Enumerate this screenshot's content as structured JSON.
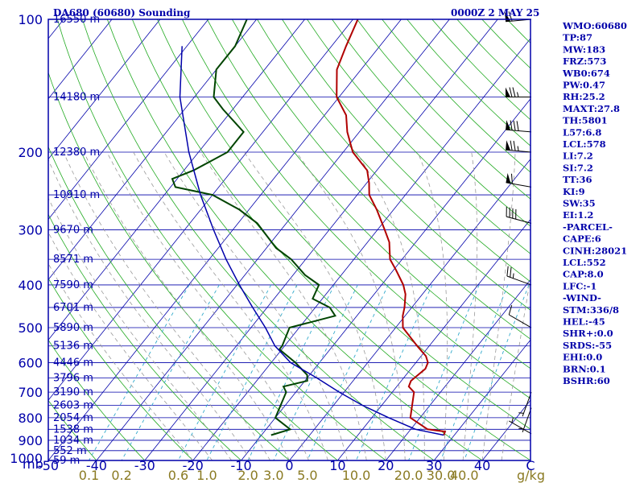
{
  "title": "DA680 (60680) Sounding",
  "datetime": "0000Z  2 MAY 25",
  "pressure_axis_label": "mb",
  "mixing_ratio_unit": "g/kg",
  "side_panel": [
    "WMO:60680",
    "TP:87",
    "MW:183",
    "FRZ:573",
    "WB0:674",
    "PW:0.47",
    "RH:25.2",
    "MAXT:27.8",
    "TH:5801",
    "L57:6.8",
    "LCL:578",
    "LI:7.2",
    "SI:7.2",
    "TT:36",
    "KI:9",
    "SW:35",
    "EI:1.2",
    "-PARCEL-",
    "CAPE:6",
    "CINH:28021",
    "LCL:552",
    "CAP:8.0",
    "LFC:-1",
    "-WIND-",
    "STM:336/8",
    "HEL:-45",
    "SHR+:0.0",
    "SRDS:-55",
    "EHI:0.0",
    "BRN:0.1",
    "BSHR:60"
  ],
  "colors": {
    "frame": "#0000aa",
    "isobar": "#0000aa",
    "isotherm": "#0000aa",
    "dry_adiabat": "#22aa22",
    "moist_adiabat": "#9a9a9a",
    "mixing_ratio": "#33aacc",
    "temperature": "#b00000",
    "dewpoint": "#004400",
    "parcel": "#0000aa",
    "wind": "#000000"
  },
  "chart_data": {
    "type": "skew-t",
    "title": "DA680 (60680) Sounding",
    "xlabel": "",
    "ylabel": "mb",
    "x_unit": "°C",
    "xlim": [
      -50,
      50
    ],
    "pressure_range": [
      1000,
      100
    ],
    "log_pressure": true,
    "grid": true,
    "pressure_ticks": [
      100,
      200,
      300,
      400,
      500,
      600,
      700,
      800,
      900,
      1000
    ],
    "temperature_ticks": [
      -50,
      -40,
      -30,
      -20,
      -10,
      0,
      10,
      20,
      30,
      40,
      50
    ],
    "temperature_tick_labels": [
      "-50",
      "-40",
      "-30",
      "-20",
      "-10",
      "0",
      "10",
      "20",
      "30",
      "40",
      "C"
    ],
    "mixing_ratio_labels": [
      "0.1",
      "0.2",
      "0.6",
      "1.0",
      "2.0",
      "3.0",
      "5.0",
      "10.0",
      "20.0",
      "30.0",
      "40.0"
    ],
    "height_labels": [
      {
        "pressure": 100,
        "label": "16550 m"
      },
      {
        "pressure": 150,
        "label": "14180 m"
      },
      {
        "pressure": 200,
        "label": "12380 m"
      },
      {
        "pressure": 250,
        "label": "10910 m"
      },
      {
        "pressure": 300,
        "label": "9670 m"
      },
      {
        "pressure": 350,
        "label": "8571 m"
      },
      {
        "pressure": 400,
        "label": "7590 m"
      },
      {
        "pressure": 450,
        "label": "6701 m"
      },
      {
        "pressure": 500,
        "label": "5890 m"
      },
      {
        "pressure": 550,
        "label": "5136 m"
      },
      {
        "pressure": 600,
        "label": "4446 m"
      },
      {
        "pressure": 650,
        "label": "3796 m"
      },
      {
        "pressure": 700,
        "label": "3190 m"
      },
      {
        "pressure": 750,
        "label": "2603 m"
      },
      {
        "pressure": 800,
        "label": "2054 m"
      },
      {
        "pressure": 850,
        "label": "1538 m"
      },
      {
        "pressure": 900,
        "label": "1034 m"
      },
      {
        "pressure": 950,
        "label": "552 m"
      },
      {
        "pressure": 1000,
        "label": "59 m"
      }
    ],
    "series": [
      {
        "name": "Temperature",
        "color": "#b00000",
        "points": [
          [
            876,
            27.8
          ],
          [
            860,
            27.5
          ],
          [
            850,
            23.5
          ],
          [
            800,
            18
          ],
          [
            700,
            14.5
          ],
          [
            680,
            12.5
          ],
          [
            660,
            12
          ],
          [
            620,
            13
          ],
          [
            600,
            12.5
          ],
          [
            580,
            11
          ],
          [
            550,
            7.5
          ],
          [
            500,
            1.5
          ],
          [
            470,
            -0.5
          ],
          [
            450,
            -1.5
          ],
          [
            420,
            -3.5
          ],
          [
            400,
            -5.5
          ],
          [
            370,
            -9.5
          ],
          [
            350,
            -12.5
          ],
          [
            320,
            -15.5
          ],
          [
            300,
            -18.5
          ],
          [
            270,
            -23.5
          ],
          [
            250,
            -27.5
          ],
          [
            235,
            -29.5
          ],
          [
            220,
            -32
          ],
          [
            200,
            -38
          ],
          [
            180,
            -42.5
          ],
          [
            165,
            -45.5
          ],
          [
            150,
            -50.5
          ],
          [
            130,
            -55
          ],
          [
            115,
            -57
          ],
          [
            100,
            -59
          ]
        ]
      },
      {
        "name": "Dewpoint",
        "color": "#004400",
        "points": [
          [
            876,
            -8
          ],
          [
            850,
            -5
          ],
          [
            800,
            -10
          ],
          [
            700,
            -12
          ],
          [
            680,
            -13.5
          ],
          [
            660,
            -9.5
          ],
          [
            640,
            -10.5
          ],
          [
            600,
            -15
          ],
          [
            560,
            -20.5
          ],
          [
            550,
            -20.5
          ],
          [
            500,
            -22
          ],
          [
            470,
            -14.5
          ],
          [
            450,
            -17
          ],
          [
            430,
            -22
          ],
          [
            400,
            -23
          ],
          [
            380,
            -27.5
          ],
          [
            350,
            -33
          ],
          [
            330,
            -38
          ],
          [
            290,
            -46
          ],
          [
            270,
            -52
          ],
          [
            250,
            -60
          ],
          [
            240,
            -69
          ],
          [
            230,
            -71
          ],
          [
            220,
            -68
          ],
          [
            200,
            -64
          ],
          [
            180,
            -64
          ],
          [
            160,
            -72
          ],
          [
            150,
            -76
          ],
          [
            130,
            -80
          ],
          [
            115,
            -80
          ],
          [
            100,
            -82
          ]
        ]
      },
      {
        "name": "Parcel",
        "color": "#0000aa",
        "points": [
          [
            876,
            27.8
          ],
          [
            850,
            21
          ],
          [
            800,
            13.5
          ],
          [
            750,
            6
          ],
          [
            700,
            -1
          ],
          [
            650,
            -8
          ],
          [
            600,
            -16
          ],
          [
            550,
            -22
          ],
          [
            500,
            -27
          ],
          [
            450,
            -33
          ],
          [
            400,
            -39.5
          ],
          [
            350,
            -46.5
          ],
          [
            300,
            -54
          ],
          [
            250,
            -62.5
          ],
          [
            200,
            -72
          ],
          [
            150,
            -83
          ],
          [
            115,
            -91
          ]
        ]
      }
    ],
    "wind_barbs": [
      {
        "pressure": 870,
        "direction": 300,
        "speed_kt": 5
      },
      {
        "pressure": 760,
        "direction": 200,
        "speed_kt": 5
      },
      {
        "pressure": 700,
        "direction": 200,
        "speed_kt": 5
      },
      {
        "pressure": 500,
        "direction": 300,
        "speed_kt": 10
      },
      {
        "pressure": 400,
        "direction": 290,
        "speed_kt": 25
      },
      {
        "pressure": 290,
        "direction": 285,
        "speed_kt": 40
      },
      {
        "pressure": 240,
        "direction": 280,
        "speed_kt": 60
      },
      {
        "pressure": 200,
        "direction": 275,
        "speed_kt": 75
      },
      {
        "pressure": 180,
        "direction": 275,
        "speed_kt": 80
      },
      {
        "pressure": 150,
        "direction": 270,
        "speed_kt": 75
      },
      {
        "pressure": 100,
        "direction": 265,
        "speed_kt": 60
      }
    ]
  }
}
